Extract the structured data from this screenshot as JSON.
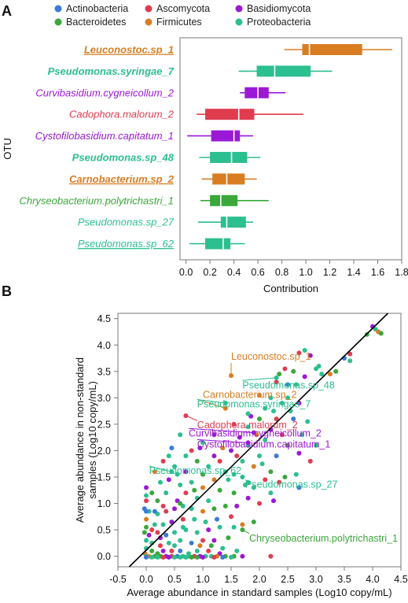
{
  "panel_a_letter": "A",
  "panel_b_letter": "B",
  "legend": [
    {
      "label": "Actinobacteria",
      "color": "#3a7bd5"
    },
    {
      "label": "Ascomycota",
      "color": "#e03c4f"
    },
    {
      "label": "Basidiomycota",
      "color": "#9b19d6"
    },
    {
      "label": "Bacteroidetes",
      "color": "#3aa83a"
    },
    {
      "label": "Firmicutes",
      "color": "#d97d22"
    },
    {
      "label": "Proteobacteria",
      "color": "#2cbf8f"
    }
  ],
  "chart_data": [
    {
      "type": "box",
      "xlabel": "Contribution",
      "ylabel": "OTU",
      "xlim": [
        -0.05,
        1.8
      ],
      "xticks": [
        "0.0",
        "0.2",
        "0.4",
        "0.6",
        "0.8",
        "1.0",
        "1.2",
        "1.4",
        "1.6",
        "1.8"
      ],
      "xtick_values": [
        0,
        0.2,
        0.4,
        0.6,
        0.8,
        1.0,
        1.2,
        1.4,
        1.6,
        1.8
      ],
      "grid": false,
      "series": [
        {
          "name_bold": "Leuconostoc",
          "name_rest": ".sp_1",
          "bold": true,
          "underline": true,
          "phylum": "Firmicutes",
          "color": "#d97d22",
          "whisker_low": 0.82,
          "q1": 0.97,
          "median": 1.03,
          "q3": 1.47,
          "whisker_high": 1.72
        },
        {
          "name_bold": "Pseudomonas.syringae",
          "name_rest": "_7",
          "bold": true,
          "underline": false,
          "phylum": "Proteobacteria",
          "color": "#2cbf8f",
          "whisker_low": 0.44,
          "q1": 0.59,
          "median": 0.74,
          "q3": 1.04,
          "whisker_high": 1.22
        },
        {
          "name_bold": "",
          "name_rest": "Curvibasidium.cygneicollum_2",
          "bold": false,
          "underline": false,
          "phylum": "Basidiomycota",
          "color": "#9b19d6",
          "whisker_low": 0.45,
          "q1": 0.49,
          "median": 0.6,
          "q3": 0.69,
          "whisker_high": 0.83
        },
        {
          "name_bold": "",
          "name_rest": "Cadophora.malorum_2",
          "bold": false,
          "underline": false,
          "phylum": "Ascomycota",
          "color": "#e03c4f",
          "whisker_low": 0.09,
          "q1": 0.16,
          "median": 0.44,
          "q3": 0.57,
          "whisker_high": 0.98
        },
        {
          "name_bold": "",
          "name_rest": "Cystofilobasidium.capitatum_1",
          "bold": false,
          "underline": false,
          "phylum": "Basidiomycota",
          "color": "#9b19d6",
          "whisker_low": 0.01,
          "q1": 0.21,
          "median": 0.4,
          "q3": 0.45,
          "whisker_high": 0.56
        },
        {
          "name_bold": "Pseudomonas",
          "name_rest": ".sp_48",
          "bold": true,
          "underline": false,
          "phylum": "Proteobacteria",
          "color": "#2cbf8f",
          "whisker_low": 0.11,
          "q1": 0.2,
          "median": 0.38,
          "q3": 0.51,
          "whisker_high": 0.62
        },
        {
          "name_bold": "Carnobacterium",
          "name_rest": ".sp_2",
          "bold": true,
          "underline": true,
          "phylum": "Firmicutes",
          "color": "#d97d22",
          "whisker_low": 0.13,
          "q1": 0.22,
          "median": 0.34,
          "q3": 0.49,
          "whisker_high": 0.59
        },
        {
          "name_bold": "",
          "name_rest": "Chryseobacterium.polytrichastri_1",
          "bold": false,
          "underline": false,
          "phylum": "Bacteroidetes",
          "color": "#3aa83a",
          "whisker_low": 0.12,
          "q1": 0.2,
          "median": 0.29,
          "q3": 0.43,
          "whisker_high": 0.69
        },
        {
          "name_bold": "",
          "name_rest": "Pseudomonas.sp_27",
          "bold": false,
          "underline": false,
          "phylum": "Proteobacteria",
          "color": "#2cbf8f",
          "whisker_low": 0.1,
          "q1": 0.29,
          "median": 0.34,
          "q3": 0.5,
          "whisker_high": 0.56
        },
        {
          "name_bold": "",
          "name_rest": "Pseudomonas.sp_62",
          "bold": false,
          "underline": true,
          "phylum": "Proteobacteria",
          "color": "#2cbf8f",
          "whisker_low": 0.03,
          "q1": 0.16,
          "median": 0.31,
          "q3": 0.37,
          "whisker_high": 0.49
        }
      ]
    },
    {
      "type": "scatter",
      "xlabel": "Average abundance in standard samples (Log10 copy/mL)",
      "ylabel_line1": "Average abundance in non-standard",
      "ylabel_line2": "samples (Log10 copy/mL)",
      "xlim": [
        -0.5,
        4.5
      ],
      "ylim": [
        -0.2,
        4.6
      ],
      "xticks": [
        "-0.5",
        "0.0",
        "0.5",
        "1.0",
        "1.5",
        "2.0",
        "2.5",
        "3.0",
        "3.5",
        "4.0",
        "4.5"
      ],
      "xtick_values": [
        -0.5,
        0,
        0.5,
        1.0,
        1.5,
        2.0,
        2.5,
        3.0,
        3.5,
        4.0,
        4.5
      ],
      "yticks": [
        "0.0",
        "0.5",
        "1.0",
        "1.5",
        "2.0",
        "2.5",
        "3.0",
        "3.5",
        "4.0",
        "4.5"
      ],
      "ytick_values": [
        0,
        0.5,
        1.0,
        1.5,
        2.0,
        2.5,
        3.0,
        3.5,
        4.0,
        4.5
      ],
      "grid": false,
      "identity_line": {
        "x": [
          -0.3,
          4.27
        ],
        "y": [
          -0.2,
          4.6
        ]
      },
      "annotations": [
        {
          "text": "Leuconostoc.sp_1",
          "color": "#d97d22",
          "label_x": 1.5,
          "label_y": 3.72,
          "point_x": 1.5,
          "point_y": 3.42
        },
        {
          "text": "Pseudomonas.sp_48",
          "color": "#2cbf8f",
          "label_x": 1.7,
          "label_y": 3.18,
          "point_x": 2.3,
          "point_y": 3.38
        },
        {
          "text": "Carnobacterium.sp_2",
          "color": "#d97d22",
          "label_x": 1.0,
          "label_y": 3.0,
          "point_x": 1.4,
          "point_y": 2.8
        },
        {
          "text": "Pseudomonas.syringae_7",
          "color": "#2cbf8f",
          "label_x": 0.9,
          "label_y": 2.82,
          "point_x": 1.4,
          "point_y": 2.9
        },
        {
          "text": "Cadophora.malorum_2",
          "color": "#e03c4f",
          "label_x": 0.9,
          "label_y": 2.42,
          "point_x": 0.7,
          "point_y": 2.66
        },
        {
          "text": "Curvibasidium.cygneicollum_2",
          "color": "#9b19d6",
          "label_x": 0.75,
          "label_y": 2.27,
          "point_x": 1.9,
          "point_y": 2.34
        },
        {
          "text": "Cystofilobasidium.capitatum_1",
          "color": "#9b19d6",
          "label_x": 0.9,
          "label_y": 2.06,
          "point_x": 1.8,
          "point_y": 2.15
        },
        {
          "text": "Pseudomonas.sp_62",
          "color": "#2cbf8f",
          "label_x": 0.05,
          "label_y": 1.56,
          "point_x": 0.45,
          "point_y": 1.6
        },
        {
          "text": "Pseudomonas.sp_27",
          "color": "#2cbf8f",
          "label_x": 1.75,
          "label_y": 1.3,
          "point_x": 1.8,
          "point_y": 1.4
        },
        {
          "text": "Chryseobacterium.polytrichastri_1",
          "color": "#3aa83a",
          "label_x": 1.82,
          "label_y": 0.28,
          "point_x": 1.7,
          "point_y": 0.5
        }
      ],
      "points": [
        [
          4.05,
          4.3
        ],
        [
          4.1,
          4.25
        ],
        [
          4.15,
          4.22
        ],
        [
          3.9,
          4.2
        ],
        [
          4.0,
          4.35
        ],
        [
          3.6,
          3.83
        ],
        [
          3.5,
          3.75
        ],
        [
          3.6,
          3.7
        ],
        [
          2.8,
          3.9
        ],
        [
          2.7,
          3.85
        ],
        [
          2.9,
          3.8
        ],
        [
          3.05,
          3.6
        ],
        [
          3.0,
          3.55
        ],
        [
          3.1,
          3.45
        ],
        [
          3.35,
          3.5
        ],
        [
          2.6,
          3.5
        ],
        [
          2.8,
          3.4
        ],
        [
          2.45,
          3.55
        ],
        [
          2.5,
          3.25
        ],
        [
          2.65,
          3.25
        ],
        [
          2.5,
          3.0
        ],
        [
          2.3,
          3.3
        ],
        [
          2.7,
          2.9
        ],
        [
          2.4,
          2.9
        ],
        [
          2.2,
          3.0
        ],
        [
          2.0,
          3.05
        ],
        [
          2.1,
          2.8
        ],
        [
          2.0,
          2.6
        ],
        [
          1.85,
          2.65
        ],
        [
          2.3,
          2.6
        ],
        [
          2.6,
          2.6
        ],
        [
          2.85,
          2.55
        ],
        [
          2.75,
          2.3
        ],
        [
          2.4,
          2.3
        ],
        [
          2.2,
          2.4
        ],
        [
          2.1,
          2.2
        ],
        [
          1.8,
          2.45
        ],
        [
          1.95,
          2.3
        ],
        [
          2.5,
          2.1
        ],
        [
          3.0,
          2.1
        ],
        [
          2.7,
          1.95
        ],
        [
          2.9,
          1.8
        ],
        [
          2.3,
          1.9
        ],
        [
          2.0,
          1.9
        ],
        [
          1.8,
          2.1
        ],
        [
          1.6,
          1.9
        ],
        [
          1.5,
          2.0
        ],
        [
          1.7,
          1.8
        ],
        [
          2.05,
          1.75
        ],
        [
          1.9,
          1.7
        ],
        [
          2.2,
          1.6
        ],
        [
          2.45,
          1.5
        ],
        [
          2.65,
          1.55
        ],
        [
          2.35,
          1.4
        ],
        [
          2.7,
          1.3
        ],
        [
          1.7,
          1.5
        ],
        [
          1.4,
          1.6
        ],
        [
          1.3,
          1.8
        ],
        [
          1.2,
          1.9
        ],
        [
          1.1,
          1.7
        ],
        [
          1.45,
          1.45
        ],
        [
          1.2,
          1.45
        ],
        [
          1.0,
          1.55
        ],
        [
          0.9,
          1.8
        ],
        [
          0.95,
          2.05
        ],
        [
          0.6,
          2.3
        ],
        [
          0.45,
          2.05
        ],
        [
          0.4,
          1.9
        ],
        [
          0.5,
          1.7
        ],
        [
          0.3,
          1.8
        ],
        [
          0.7,
          1.6
        ],
        [
          0.8,
          1.4
        ],
        [
          0.6,
          1.35
        ],
        [
          1.0,
          1.3
        ],
        [
          1.3,
          1.25
        ],
        [
          1.55,
          1.2
        ],
        [
          1.8,
          1.1
        ],
        [
          2.0,
          1.0
        ],
        [
          2.2,
          1.2
        ],
        [
          1.1,
          1.05
        ],
        [
          0.9,
          1.1
        ],
        [
          0.7,
          1.2
        ],
        [
          0.55,
          1.05
        ],
        [
          0.35,
          1.2
        ],
        [
          0.25,
          1.4
        ],
        [
          0.15,
          1.6
        ],
        [
          0.2,
          1.05
        ],
        [
          0.1,
          1.2
        ],
        [
          0.0,
          1.3
        ],
        [
          0.0,
          1.05
        ],
        [
          -0.03,
          0.9
        ],
        [
          0.05,
          0.85
        ],
        [
          0.2,
          0.8
        ],
        [
          0.35,
          0.85
        ],
        [
          0.5,
          0.9
        ],
        [
          0.65,
          0.95
        ],
        [
          0.8,
          0.9
        ],
        [
          1.0,
          0.85
        ],
        [
          1.2,
          0.9
        ],
        [
          1.4,
          0.95
        ],
        [
          1.6,
          0.95
        ],
        [
          1.5,
          0.75
        ],
        [
          1.25,
          0.7
        ],
        [
          1.05,
          0.65
        ],
        [
          0.85,
          0.7
        ],
        [
          0.65,
          0.7
        ],
        [
          0.45,
          0.65
        ],
        [
          0.3,
          0.6
        ],
        [
          0.15,
          0.6
        ],
        [
          0.0,
          0.7
        ],
        [
          0.0,
          0.55
        ],
        [
          -0.03,
          0.45
        ],
        [
          0.05,
          0.4
        ],
        [
          0.2,
          0.45
        ],
        [
          0.35,
          0.4
        ],
        [
          0.5,
          0.45
        ],
        [
          0.7,
          0.5
        ],
        [
          0.9,
          0.45
        ],
        [
          1.1,
          0.5
        ],
        [
          1.3,
          0.55
        ],
        [
          1.55,
          0.55
        ],
        [
          1.7,
          0.6
        ],
        [
          1.9,
          0.65
        ],
        [
          1.45,
          0.35
        ],
        [
          1.2,
          0.3
        ],
        [
          1.0,
          0.3
        ],
        [
          0.8,
          0.25
        ],
        [
          0.6,
          0.3
        ],
        [
          0.4,
          0.25
        ],
        [
          0.25,
          0.2
        ],
        [
          0.1,
          0.25
        ],
        [
          0.0,
          0.3
        ],
        [
          0.0,
          0.15
        ],
        [
          -0.02,
          0.05
        ],
        [
          0.1,
          0.1
        ],
        [
          0.2,
          0.05
        ],
        [
          0.3,
          0.1
        ],
        [
          0.45,
          0.1
        ],
        [
          0.6,
          0.1
        ],
        [
          0.75,
          0.05
        ],
        [
          0.9,
          0.1
        ],
        [
          1.1,
          0.1
        ],
        [
          1.3,
          0.05
        ],
        [
          1.6,
          0.1
        ],
        [
          0.0,
          0.0
        ],
        [
          0.05,
          0.0
        ],
        [
          0.15,
          0.0
        ],
        [
          0.25,
          0.0
        ],
        [
          0.35,
          0.0
        ],
        [
          0.45,
          0.0
        ],
        [
          0.55,
          0.0
        ],
        [
          0.65,
          0.0
        ],
        [
          0.75,
          0.0
        ],
        [
          0.85,
          0.0
        ],
        [
          0.95,
          0.0
        ],
        [
          1.05,
          0.0
        ],
        [
          1.15,
          0.0
        ],
        [
          1.25,
          0.0
        ],
        [
          1.4,
          0.0
        ],
        [
          1.55,
          0.0
        ],
        [
          1.7,
          0.0
        ],
        [
          2.2,
          0.0
        ],
        [
          0.0,
          -0.02
        ],
        [
          0.1,
          -0.02
        ],
        [
          0.2,
          -0.02
        ],
        [
          0.3,
          -0.02
        ],
        [
          0.4,
          -0.02
        ],
        [
          0.5,
          -0.02
        ],
        [
          0.6,
          -0.02
        ],
        [
          0.7,
          -0.02
        ],
        [
          0.8,
          -0.02
        ],
        [
          0.9,
          -0.02
        ],
        [
          1.0,
          -0.02
        ],
        [
          1.2,
          -0.02
        ],
        [
          1.35,
          -0.02
        ],
        [
          1.5,
          -0.02
        ],
        [
          0.7,
          1.9
        ],
        [
          0.8,
          2.0
        ],
        [
          1.2,
          2.3
        ],
        [
          1.0,
          2.15
        ],
        [
          0.55,
          1.55
        ],
        [
          1.35,
          2.05
        ],
        [
          1.55,
          1.55
        ],
        [
          0.85,
          1.25
        ],
        [
          0.4,
          1.45
        ],
        [
          0.3,
          0.95
        ],
        [
          0.15,
          0.85
        ],
        [
          1.75,
          1.35
        ],
        [
          1.9,
          1.3
        ],
        [
          2.1,
          1.45
        ],
        [
          2.25,
          1.05
        ],
        [
          0.65,
          0.55
        ],
        [
          0.5,
          0.2
        ],
        [
          0.95,
          0.2
        ],
        [
          1.15,
          0.2
        ],
        [
          1.35,
          0.15
        ],
        [
          0.25,
          0.35
        ],
        [
          0.1,
          0.5
        ],
        [
          0.0,
          0.85
        ],
        [
          0.0,
          1.15
        ],
        [
          1.8,
          2.7
        ],
        [
          1.55,
          2.5
        ],
        [
          1.65,
          2.25
        ],
        [
          2.55,
          2.75
        ],
        [
          2.25,
          2.75
        ],
        [
          3.25,
          3.45
        ],
        [
          2.35,
          3.45
        ],
        [
          0.6,
          1.0
        ]
      ]
    }
  ]
}
